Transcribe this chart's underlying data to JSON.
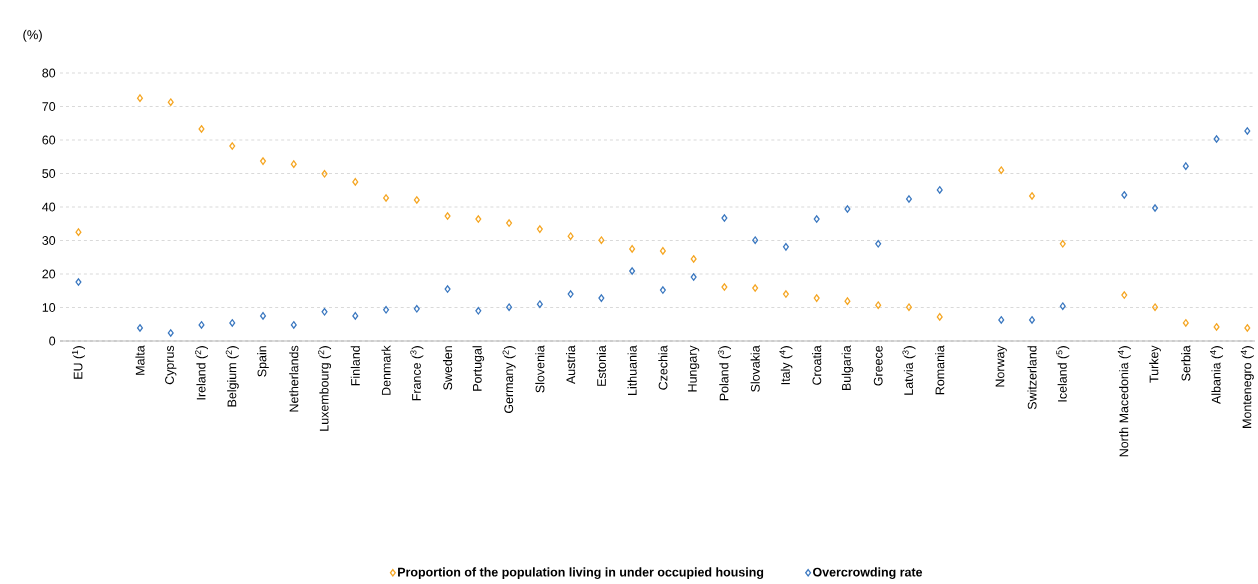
{
  "chart_data": {
    "type": "scatter",
    "ylabel": "(%)",
    "categories": [
      "EU ($^{1}$)",
      null,
      "Malta",
      "Cyprus",
      "Ireland ($^{2}$)",
      "Belgium ($^{2}$)",
      "Spain",
      "Netherlands",
      "Luxembourg ($^{2}$)",
      "Finland",
      "Denmark",
      "France ($^{3}$)",
      "Sweden",
      "Portugal",
      "Germany ($^{2}$)",
      "Slovenia",
      "Austria",
      "Estonia",
      "Lithuania",
      "Czechia",
      "Hungary",
      "Poland ($^{3}$)",
      "Slovakia",
      "Italy ($^{4}$)",
      "Croatia",
      "Bulgaria",
      "Greece",
      "Latvia ($^{3}$)",
      "Romania",
      null,
      "Norway",
      "Switzerland",
      "Iceland ($^{5}$)",
      null,
      "North Macedonia ($^{4}$)",
      "Turkey",
      "Serbia",
      "Albania ($^{4}$)",
      "Montenegro ($^{4}$)"
    ],
    "series": [
      {
        "name": "Proportion of the population living in under occupied housing",
        "color": "#f5a623",
        "values": [
          32.5,
          null,
          72.5,
          71.3,
          63.3,
          58.2,
          53.7,
          52.8,
          49.9,
          47.5,
          42.7,
          42.1,
          37.3,
          36.4,
          35.2,
          33.4,
          31.3,
          30.1,
          27.5,
          26.9,
          24.5,
          16.1,
          15.8,
          14.0,
          12.8,
          11.9,
          10.7,
          10.1,
          7.2,
          null,
          51.0,
          43.3,
          29.0,
          null,
          13.7,
          10.1,
          5.4,
          4.2,
          3.9
        ]
      },
      {
        "name": "Overcrowding rate",
        "color": "#3b78c0",
        "values": [
          17.6,
          null,
          3.9,
          2.4,
          4.8,
          5.4,
          7.5,
          4.8,
          8.7,
          7.5,
          9.3,
          9.6,
          15.5,
          9.0,
          10.1,
          11.0,
          14.0,
          12.8,
          20.9,
          15.2,
          19.1,
          36.7,
          30.1,
          28.1,
          36.4,
          39.4,
          29.0,
          42.4,
          45.1,
          null,
          6.3,
          6.3,
          10.4,
          null,
          43.6,
          39.7,
          52.2,
          60.3,
          62.7
        ]
      }
    ],
    "ylim": [
      0,
      80
    ],
    "yticks": [
      0,
      10,
      20,
      30,
      40,
      50,
      60,
      70,
      80
    ],
    "grid": "y",
    "legend": "bottom",
    "marker": "diamond"
  }
}
